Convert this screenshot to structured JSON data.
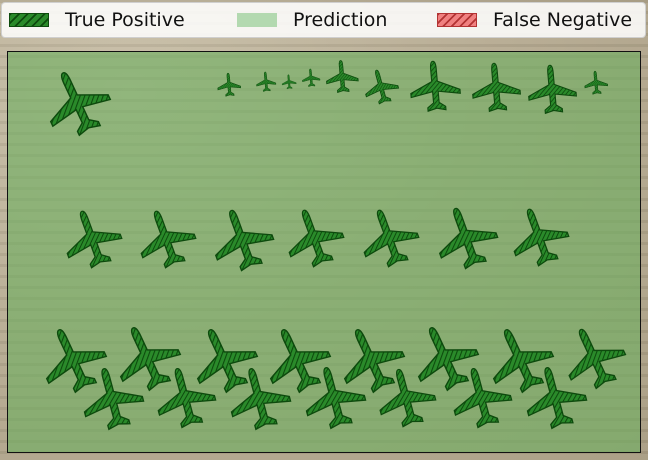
{
  "legend": {
    "items": [
      {
        "label": "True Positive",
        "kind": "true-positive",
        "color": "#2a8a2a"
      },
      {
        "label": "Prediction",
        "kind": "prediction",
        "color": "#b3d9b0"
      },
      {
        "label": "False Negative",
        "kind": "false-negative",
        "color": "#f08080"
      }
    ]
  },
  "colors": {
    "true_positive_fill": "#2a8a2a",
    "true_positive_hatch": "#0d4a0d",
    "prediction_overlay": "#6eaf5f",
    "false_negative_fill": "#f08080"
  }
}
